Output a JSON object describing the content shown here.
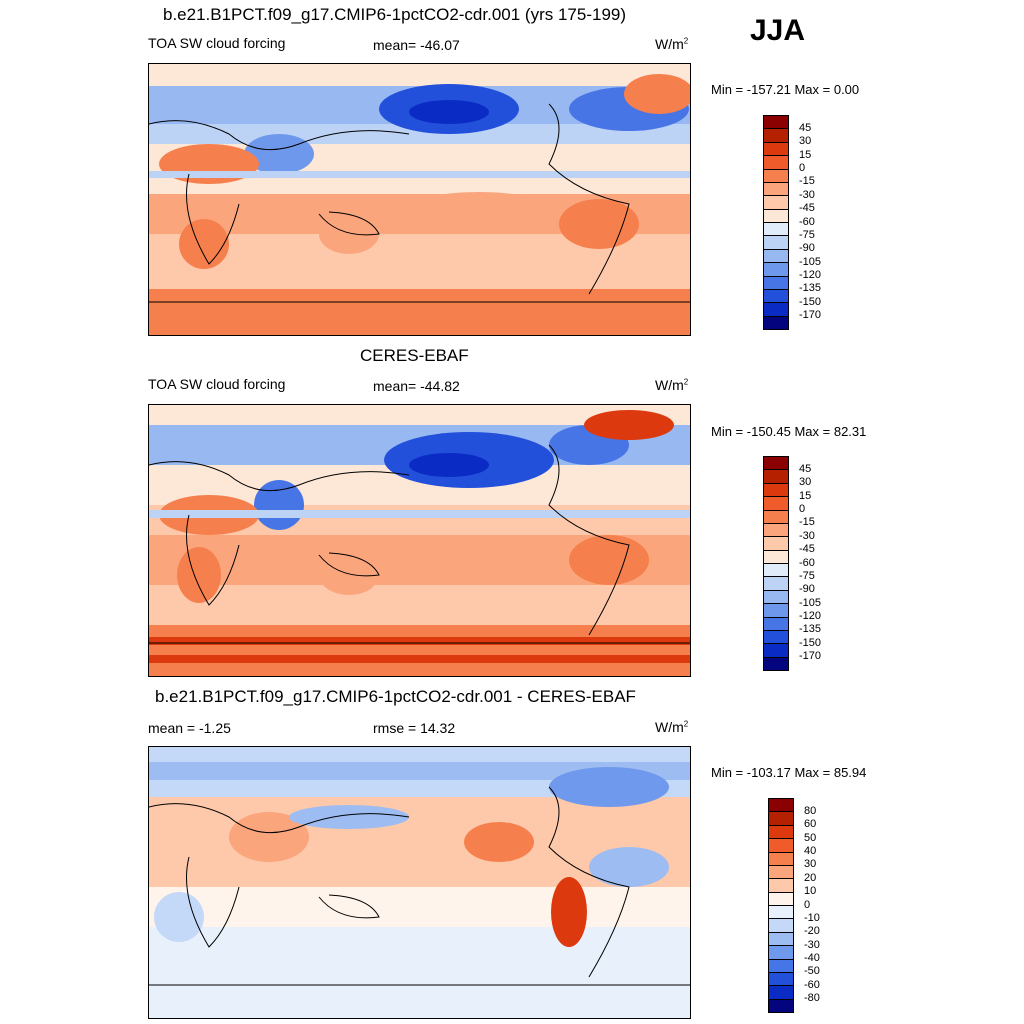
{
  "season": "JJA",
  "panels": [
    {
      "title": "b.e21.B1PCT.f09_g17.CMIP6-1pctCO2-cdr.001 (yrs 175-199)",
      "left_label": "TOA SW cloud forcing",
      "center_label": "mean= -46.07",
      "units": "W/m",
      "units_sup": "2",
      "minmax": "Min = -157.21 Max =   0.00",
      "colorbar": {
        "labels": [
          "45",
          "30",
          "15",
          "0",
          "-15",
          "-30",
          "-45",
          "-60",
          "-75",
          "-90",
          "-105",
          "-120",
          "-135",
          "-150",
          "-170"
        ],
        "colors": [
          "#8b0000",
          "#b52100",
          "#dc3a0e",
          "#ef5b2a",
          "#f6804d",
          "#fba57d",
          "#fdc9aa",
          "#fde7d6",
          "#e0ecfa",
          "#bcd3f6",
          "#97b8f1",
          "#6e98ec",
          "#4775e6",
          "#2350db",
          "#0a2bc4",
          "#03047e"
        ]
      }
    },
    {
      "title": "CERES-EBAF",
      "left_label": "TOA SW cloud forcing",
      "center_label": "mean= -44.82",
      "units": "W/m",
      "units_sup": "2",
      "minmax": "Min = -150.45 Max =  82.31",
      "colorbar": {
        "labels": [
          "45",
          "30",
          "15",
          "0",
          "-15",
          "-30",
          "-45",
          "-60",
          "-75",
          "-90",
          "-105",
          "-120",
          "-135",
          "-150",
          "-170"
        ],
        "colors": [
          "#8b0000",
          "#b52100",
          "#dc3a0e",
          "#ef5b2a",
          "#f6804d",
          "#fba57d",
          "#fdc9aa",
          "#fde7d6",
          "#e0ecfa",
          "#bcd3f6",
          "#97b8f1",
          "#6e98ec",
          "#4775e6",
          "#2350db",
          "#0a2bc4",
          "#03047e"
        ]
      }
    },
    {
      "title": "b.e21.B1PCT.f09_g17.CMIP6-1pctCO2-cdr.001 - CERES-EBAF",
      "left_label": "mean =  -1.25",
      "center_label": "rmse =  14.32",
      "units": "W/m",
      "units_sup": "2",
      "minmax": "Min = -103.17 Max =  85.94",
      "colorbar": {
        "labels": [
          "80",
          "60",
          "50",
          "40",
          "30",
          "20",
          "10",
          "0",
          "-10",
          "-20",
          "-30",
          "-40",
          "-50",
          "-60",
          "-80"
        ],
        "colors": [
          "#8b0000",
          "#b52100",
          "#dc3a0e",
          "#ef5b2a",
          "#f6804d",
          "#fba57d",
          "#fdc9aa",
          "#fef4ec",
          "#e8f0fb",
          "#c4d8f7",
          "#9dbdf2",
          "#6f99ec",
          "#4575e6",
          "#2350db",
          "#0a2bc4",
          "#03047e"
        ]
      }
    }
  ]
}
